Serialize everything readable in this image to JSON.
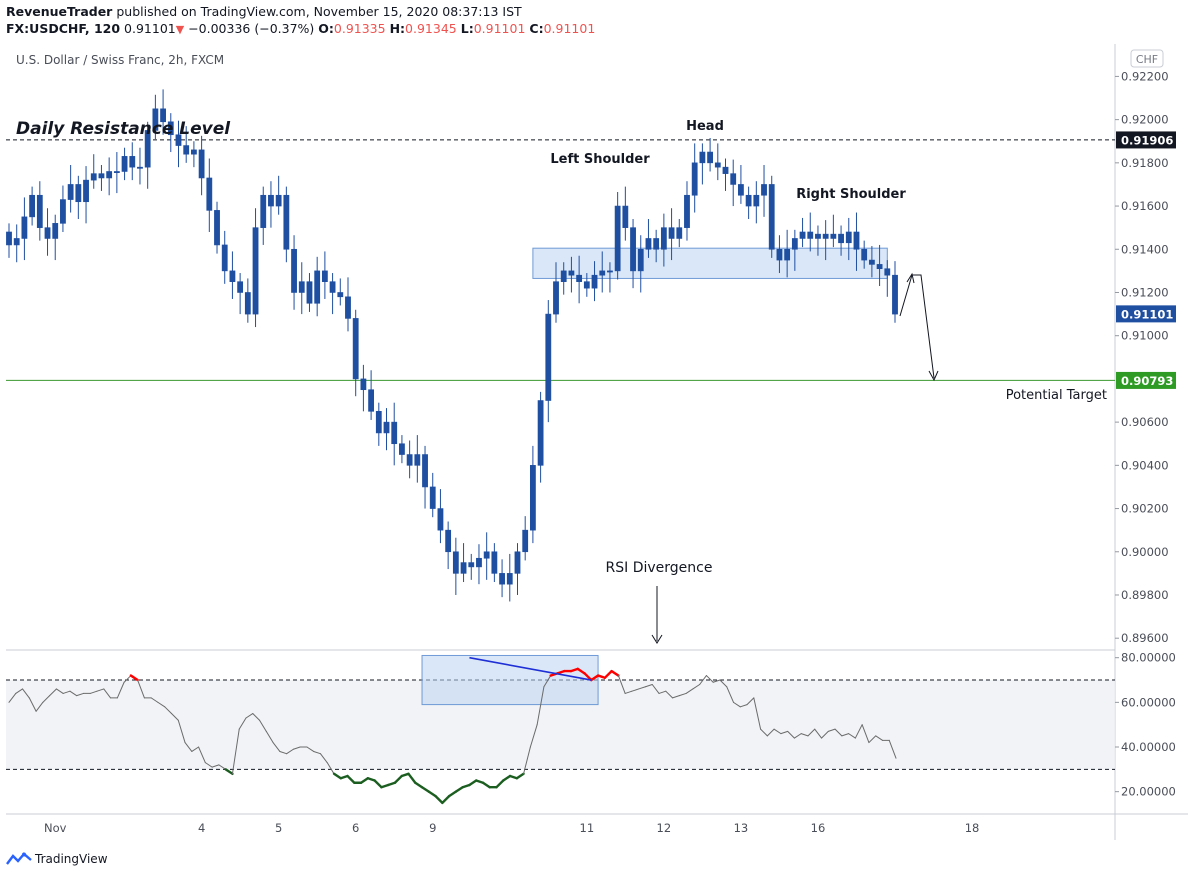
{
  "header": {
    "publisher": "RevenueTrader",
    "published_text": " published on TradingView.com, November 15, 2020 08:37:13 IST",
    "symbol": "FX:USDCHF, 120",
    "last": "0.91101",
    "change": "−0.00336 (−0.37%)",
    "open_label": "O:",
    "open": "0.91335",
    "high_label": "H:",
    "high": "0.91345",
    "low_label": "L:",
    "low": "0.91101",
    "close_label": "C:",
    "close": "0.91101"
  },
  "footer": {
    "brand": "TradingView"
  },
  "colors": {
    "up": "#ffffff",
    "body": "#1f4fa0",
    "wick": "#1f4fa0",
    "resistance": "#131722",
    "target": "#3a9a2f",
    "zone": "#bcd3f2",
    "rsi_line": "#6b6b6b",
    "rsi_overbought": "#ff0000",
    "rsi_oversold": "#1b5e20",
    "divergence": "#1e2fd6"
  },
  "chart_data": [
    {
      "type": "candlestick",
      "title": "U.S. Dollar / Swiss Franc, 2h, FXCM",
      "currency_label": "CHF",
      "ylim": [
        0.8955,
        0.9235
      ],
      "y_ticks": [
        "0.92200",
        "0.92000",
        "0.91800",
        "0.91600",
        "0.91400",
        "0.91200",
        "0.91000",
        "0.90600",
        "0.90400",
        "0.90200",
        "0.90000",
        "0.89800",
        "0.89600"
      ],
      "y_tick_values": [
        0.922,
        0.92,
        0.918,
        0.916,
        0.914,
        0.912,
        0.91,
        0.906,
        0.904,
        0.902,
        0.9,
        0.898,
        0.896
      ],
      "x_ticks": [
        "Nov",
        "4",
        "5",
        "6",
        "9",
        "11",
        "12",
        "13",
        "16",
        "18"
      ],
      "x_tick_values": [
        6,
        25,
        35,
        45,
        55,
        75,
        85,
        95,
        105,
        125
      ],
      "price_labels": [
        {
          "text": "0.91906",
          "value": 0.91906,
          "style": "resistance"
        },
        {
          "text": "0.91101",
          "value": 0.91101,
          "style": "last"
        },
        {
          "text": "0.90793",
          "value": 0.90793,
          "style": "target"
        }
      ],
      "annotations": {
        "resistance": "Daily Resistance Level",
        "head": "Head",
        "left_shoulder": "Left Shoulder",
        "right_shoulder": "Right Shoulder",
        "target": "Potential Target",
        "rsi_divergence": "RSI Divergence"
      },
      "resistance_level": 0.91906,
      "target_level": 0.90793,
      "neckline_zone": [
        0.91265,
        0.91405
      ],
      "neckline_zone_x": [
        68,
        114
      ],
      "candles_close": [
        0.9142,
        0.9145,
        0.9155,
        0.9165,
        0.915,
        0.9145,
        0.9152,
        0.9163,
        0.917,
        0.9162,
        0.9172,
        0.9175,
        0.9173,
        0.9176,
        0.9176,
        0.9183,
        0.9178,
        0.9178,
        0.9195,
        0.9205,
        0.9199,
        0.9193,
        0.9188,
        0.9184,
        0.9186,
        0.9173,
        0.9158,
        0.9142,
        0.913,
        0.9125,
        0.912,
        0.911,
        0.915,
        0.9165,
        0.916,
        0.9165,
        0.914,
        0.912,
        0.9125,
        0.9115,
        0.913,
        0.9125,
        0.912,
        0.9118,
        0.9108,
        0.908,
        0.9075,
        0.9065,
        0.9055,
        0.906,
        0.905,
        0.9045,
        0.904,
        0.9045,
        0.903,
        0.902,
        0.901,
        0.9,
        0.899,
        0.8995,
        0.8993,
        0.8997,
        0.9,
        0.899,
        0.8985,
        0.899,
        0.9,
        0.901,
        0.904,
        0.907,
        0.911,
        0.9125,
        0.913,
        0.9128,
        0.9125,
        0.9122,
        0.9128,
        0.913,
        0.913,
        0.916,
        0.915,
        0.913,
        0.914,
        0.9145,
        0.914,
        0.915,
        0.9145,
        0.915,
        0.9165,
        0.918,
        0.9185,
        0.918,
        0.9178,
        0.9175,
        0.917,
        0.9165,
        0.916,
        0.9165,
        0.917,
        0.914,
        0.9135,
        0.914,
        0.9145,
        0.9148,
        0.9145,
        0.9147,
        0.9145,
        0.9147,
        0.9143,
        0.9148,
        0.914,
        0.9135,
        0.9133,
        0.9131,
        0.9128,
        0.911
      ]
    },
    {
      "type": "line",
      "title": "",
      "ylim": [
        10,
        83
      ],
      "y_ticks": [
        "80.00000",
        "60.00000",
        "40.00000",
        "20.00000"
      ],
      "y_tick_values": [
        80,
        60,
        40,
        20
      ],
      "overbought": 70,
      "oversold": 30,
      "divergence_zone_x": [
        61,
        87
      ],
      "divergence_zone_y": [
        59,
        81
      ],
      "divergence_line": [
        {
          "x": 68,
          "y": 80
        },
        {
          "x": 86,
          "y": 70
        }
      ],
      "rsi": [
        60,
        64,
        66,
        62,
        56,
        60,
        63,
        66,
        64,
        65,
        63,
        64,
        64,
        65,
        66,
        62,
        62,
        69,
        72,
        70,
        62,
        62,
        60,
        58,
        55,
        52,
        42,
        38,
        40,
        33,
        31,
        32,
        30,
        28,
        48,
        53,
        55,
        52,
        47,
        42,
        38,
        37,
        39,
        40,
        40,
        38,
        37,
        33,
        28,
        26,
        27,
        24,
        24,
        26,
        25,
        22,
        23,
        24,
        27,
        28,
        24,
        22,
        20,
        18,
        15,
        18,
        20,
        22,
        23,
        25,
        24,
        22,
        22,
        25,
        27,
        26,
        28,
        40,
        50,
        67,
        72,
        73,
        74,
        74,
        75,
        73,
        70,
        72,
        71,
        74,
        72,
        64,
        65,
        66,
        67,
        68,
        64,
        65,
        62,
        63,
        64,
        66,
        68,
        72,
        69,
        70,
        67,
        60,
        58,
        59,
        62,
        48,
        45,
        48,
        46,
        47,
        44,
        46,
        45,
        48,
        44,
        47,
        48,
        45,
        46,
        44,
        50,
        42,
        45,
        43,
        43,
        35
      ]
    }
  ]
}
